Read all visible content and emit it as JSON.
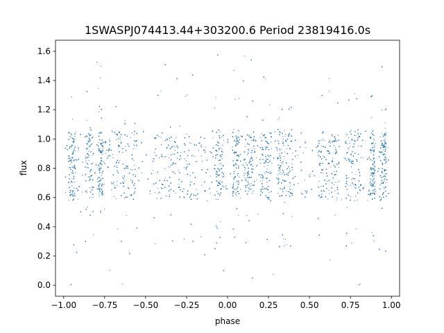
{
  "chart_data": {
    "type": "scatter",
    "title": "1SWASPJ074413.44+303200.6 Period 23819416.0s",
    "xlabel": "phase",
    "ylabel": "flux",
    "xlim": [
      -1.05,
      1.05
    ],
    "ylim": [
      -0.075,
      1.675
    ],
    "xticks": [
      -1.0,
      -0.75,
      -0.5,
      -0.25,
      0.0,
      0.25,
      0.5,
      0.75,
      1.0
    ],
    "xtick_labels": [
      "−1.00",
      "−0.75",
      "−0.50",
      "−0.25",
      "0.00",
      "0.25",
      "0.50",
      "0.75",
      "1.00"
    ],
    "yticks": [
      0.0,
      0.2,
      0.4,
      0.6,
      0.8,
      1.0,
      1.2,
      1.4,
      1.6
    ],
    "ytick_labels": [
      "0.0",
      "0.2",
      "0.4",
      "0.6",
      "0.8",
      "1.0",
      "1.2",
      "1.4",
      "1.6"
    ],
    "grid": false,
    "series": [
      {
        "color": "#1f77b4",
        "marker_size": 0.6,
        "phase_range": [
          -0.99,
          0.99
        ],
        "flux_core": [
          0.6,
          1.05
        ],
        "flux_spread": [
          0.0,
          1.6
        ],
        "dense_phase_bands": [
          [
            -0.97,
            -0.93
          ],
          [
            -0.87,
            -0.82
          ],
          [
            -0.79,
            -0.76
          ],
          [
            -0.7,
            -0.55
          ],
          [
            -0.45,
            -0.2
          ],
          [
            -0.08,
            -0.02
          ],
          [
            0.03,
            0.07
          ],
          [
            0.1,
            0.17
          ],
          [
            0.2,
            0.27
          ],
          [
            0.3,
            0.4
          ],
          [
            0.55,
            0.68
          ],
          [
            0.72,
            0.82
          ],
          [
            0.87,
            0.9
          ],
          [
            0.93,
            0.97
          ]
        ]
      }
    ]
  }
}
